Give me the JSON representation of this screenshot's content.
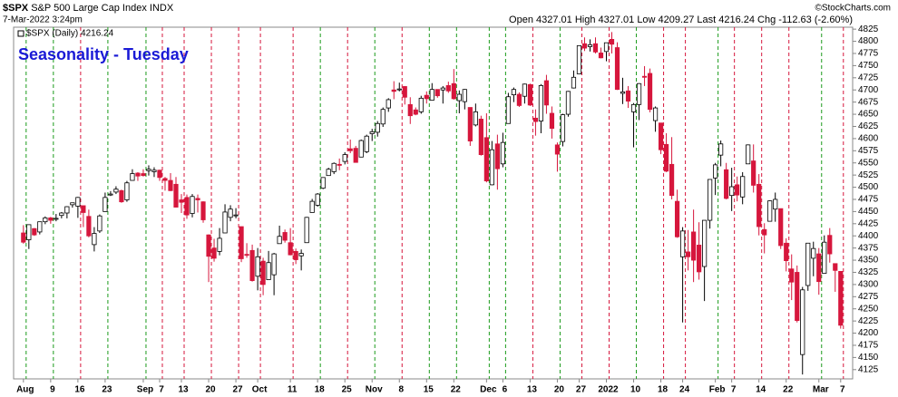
{
  "header": {
    "symbol": "$SPX",
    "name": "S&P 500 Large Cap Index",
    "exchange": "INDX",
    "date": "7-Mar-2022 3:24pm",
    "quote": "Open 4327.01 High 4327.01 Low 4209.27 Last 4216.24 Chg -112.63 (-2.60%)",
    "credit": "©StockCharts.com"
  },
  "chart_data": {
    "type": "candlestick",
    "title": "Seasonality - Tuesday",
    "legend": "$SPX (Daily) 4216.24",
    "up_color": "#ffffff",
    "down_color": "#d6163c",
    "line_up_color": "#1a9a1a",
    "line_down_color": "#d6163c",
    "ylim": [
      4106,
      4829
    ],
    "xlim": [
      -1.8,
      152.2
    ],
    "yticks": [
      4125,
      4150,
      4175,
      4200,
      4225,
      4250,
      4275,
      4300,
      4325,
      4350,
      4375,
      4400,
      4425,
      4450,
      4475,
      4500,
      4525,
      4550,
      4575,
      4600,
      4625,
      4650,
      4675,
      4700,
      4725,
      4750,
      4775,
      4800,
      4825
    ],
    "xticks": [
      {
        "value": 0,
        "label": "Aug"
      },
      {
        "value": 5,
        "label": "9"
      },
      {
        "value": 10,
        "label": "16"
      },
      {
        "value": 15,
        "label": "23"
      },
      {
        "value": 22,
        "label": "Sep"
      },
      {
        "value": 25,
        "label": "7"
      },
      {
        "value": 29,
        "label": "13"
      },
      {
        "value": 34,
        "label": "20"
      },
      {
        "value": 39,
        "label": "27"
      },
      {
        "value": 43,
        "label": "Oct"
      },
      {
        "value": 49,
        "label": "11"
      },
      {
        "value": 54,
        "label": "18"
      },
      {
        "value": 59,
        "label": "25"
      },
      {
        "value": 64,
        "label": "Nov"
      },
      {
        "value": 69,
        "label": "8"
      },
      {
        "value": 74,
        "label": "15"
      },
      {
        "value": 79,
        "label": "22"
      },
      {
        "value": 85,
        "label": "Dec"
      },
      {
        "value": 88,
        "label": "6"
      },
      {
        "value": 93,
        "label": "13"
      },
      {
        "value": 98,
        "label": "20"
      },
      {
        "value": 102,
        "label": "27"
      },
      {
        "value": 107,
        "label": "2022"
      },
      {
        "value": 112,
        "label": "10"
      },
      {
        "value": 117,
        "label": "18"
      },
      {
        "value": 121,
        "label": "24"
      },
      {
        "value": 127,
        "label": "Feb"
      },
      {
        "value": 130,
        "label": "7"
      },
      {
        "value": 135,
        "label": "14"
      },
      {
        "value": 140,
        "label": "22"
      },
      {
        "value": 146,
        "label": "Mar"
      },
      {
        "value": 150,
        "label": "7"
      }
    ],
    "ohlc": [
      [
        4406,
        4422,
        4384,
        4387
      ],
      [
        4392,
        4423,
        4373,
        4423
      ],
      [
        4415,
        4416,
        4400,
        4402
      ],
      [
        4408,
        4429,
        4403,
        4429
      ],
      [
        4429,
        4440,
        4424,
        4437
      ],
      [
        4437,
        4439,
        4425,
        4432
      ],
      [
        4435,
        4445,
        4430,
        4436
      ],
      [
        4442,
        4449,
        4436,
        4447
      ],
      [
        4447,
        4461,
        4436,
        4460
      ],
      [
        4464,
        4468,
        4458,
        4468
      ],
      [
        4461,
        4480,
        4437,
        4479
      ],
      [
        4462,
        4462,
        4418,
        4448
      ],
      [
        4440,
        4454,
        4397,
        4400
      ],
      [
        4382,
        4418,
        4368,
        4405
      ],
      [
        4410,
        4444,
        4406,
        4441
      ],
      [
        4450,
        4489,
        4450,
        4479
      ],
      [
        4484,
        4492,
        4482,
        4486
      ],
      [
        4490,
        4502,
        4486,
        4496
      ],
      [
        4493,
        4495,
        4468,
        4470
      ],
      [
        4474,
        4513,
        4470,
        4509
      ],
      [
        4514,
        4537,
        4514,
        4528
      ],
      [
        4529,
        4531,
        4513,
        4523
      ],
      [
        4528,
        4537,
        4522,
        4524
      ],
      [
        4534,
        4545,
        4524,
        4537
      ],
      [
        4532,
        4541,
        4521,
        4535
      ],
      [
        4535,
        4536,
        4513,
        4520
      ],
      [
        4518,
        4521,
        4493,
        4514
      ],
      [
        4514,
        4529,
        4492,
        4493
      ],
      [
        4506,
        4521,
        4459,
        4459
      ],
      [
        4474,
        4486,
        4447,
        4469
      ],
      [
        4479,
        4485,
        4435,
        4443
      ],
      [
        4446,
        4486,
        4438,
        4481
      ],
      [
        4477,
        4485,
        4448,
        4474
      ],
      [
        4470,
        4471,
        4427,
        4433
      ],
      [
        4402,
        4403,
        4305,
        4358
      ],
      [
        4375,
        4394,
        4347,
        4354
      ],
      [
        4368,
        4416,
        4360,
        4395
      ],
      [
        4406,
        4465,
        4406,
        4449
      ],
      [
        4438,
        4463,
        4430,
        4455
      ],
      [
        4442,
        4457,
        4436,
        4443
      ],
      [
        4419,
        4419,
        4346,
        4353
      ],
      [
        4362,
        4385,
        4355,
        4360
      ],
      [
        4370,
        4382,
        4306,
        4308
      ],
      [
        4317,
        4375,
        4288,
        4357
      ],
      [
        4348,
        4355,
        4278,
        4300
      ],
      [
        4310,
        4369,
        4310,
        4345
      ],
      [
        4320,
        4365,
        4278,
        4363
      ],
      [
        4384,
        4421,
        4384,
        4399
      ],
      [
        4407,
        4413,
        4386,
        4391
      ],
      [
        4386,
        4416,
        4360,
        4361
      ],
      [
        4368,
        4374,
        4342,
        4351
      ],
      [
        4359,
        4372,
        4329,
        4364
      ],
      [
        4386,
        4439,
        4386,
        4438
      ],
      [
        4448,
        4476,
        4448,
        4471
      ],
      [
        4463,
        4488,
        4460,
        4486
      ],
      [
        4498,
        4520,
        4496,
        4520
      ],
      [
        4524,
        4540,
        4524,
        4537
      ],
      [
        4532,
        4551,
        4527,
        4549
      ],
      [
        4547,
        4559,
        4535,
        4545
      ],
      [
        4553,
        4572,
        4547,
        4567
      ],
      [
        4579,
        4598,
        4570,
        4575
      ],
      [
        4580,
        4585,
        4551,
        4551
      ],
      [
        4562,
        4598,
        4562,
        4596
      ],
      [
        4573,
        4608,
        4570,
        4605
      ],
      [
        4610,
        4620,
        4595,
        4614
      ],
      [
        4613,
        4636,
        4604,
        4631
      ],
      [
        4630,
        4664,
        4624,
        4660
      ],
      [
        4663,
        4683,
        4655,
        4680
      ],
      [
        4700,
        4718,
        4681,
        4697
      ],
      [
        4701,
        4715,
        4697,
        4702
      ],
      [
        4707,
        4708,
        4670,
        4685
      ],
      [
        4670,
        4685,
        4630,
        4647
      ],
      [
        4659,
        4664,
        4648,
        4650
      ],
      [
        4655,
        4688,
        4651,
        4683
      ],
      [
        4689,
        4697,
        4672,
        4682
      ],
      [
        4679,
        4714,
        4679,
        4701
      ],
      [
        4701,
        4701,
        4684,
        4688
      ],
      [
        4700,
        4708,
        4672,
        4704
      ],
      [
        4709,
        4717,
        4694,
        4698
      ],
      [
        4713,
        4743,
        4680,
        4682
      ],
      [
        4678,
        4699,
        4652,
        4691
      ],
      [
        4676,
        4702,
        4660,
        4701
      ],
      [
        4664,
        4664,
        4585,
        4595
      ],
      [
        4628,
        4672,
        4625,
        4655
      ],
      [
        4640,
        4647,
        4565,
        4567
      ],
      [
        4602,
        4652,
        4510,
        4513
      ],
      [
        4505,
        4595,
        4504,
        4577
      ],
      [
        4589,
        4608,
        4495,
        4538
      ],
      [
        4548,
        4612,
        4541,
        4592
      ],
      [
        4631,
        4694,
        4631,
        4686
      ],
      [
        4690,
        4705,
        4675,
        4701
      ],
      [
        4691,
        4695,
        4665,
        4668
      ],
      [
        4687,
        4713,
        4672,
        4712
      ],
      [
        4711,
        4713,
        4667,
        4669
      ],
      [
        4642,
        4660,
        4606,
        4635
      ],
      [
        4636,
        4712,
        4611,
        4709
      ],
      [
        4719,
        4731,
        4651,
        4669
      ],
      [
        4652,
        4666,
        4600,
        4621
      ],
      [
        4587,
        4592,
        4532,
        4568
      ],
      [
        4594,
        4651,
        4584,
        4649
      ],
      [
        4650,
        4698,
        4645,
        4697
      ],
      [
        4704,
        4740,
        4703,
        4726
      ],
      [
        4733,
        4791,
        4733,
        4791
      ],
      [
        4795,
        4808,
        4780,
        4786
      ],
      [
        4789,
        4804,
        4779,
        4793
      ],
      [
        4795,
        4808,
        4775,
        4778
      ],
      [
        4776,
        4787,
        4765,
        4766
      ],
      [
        4779,
        4797,
        4759,
        4797
      ],
      [
        4804,
        4819,
        4775,
        4794
      ],
      [
        4787,
        4798,
        4700,
        4701
      ],
      [
        4693,
        4725,
        4671,
        4696
      ],
      [
        4698,
        4708,
        4663,
        4677
      ],
      [
        4655,
        4673,
        4582,
        4670
      ],
      [
        4670,
        4714,
        4638,
        4713
      ],
      [
        4728,
        4749,
        4708,
        4726
      ],
      [
        4734,
        4744,
        4654,
        4660
      ],
      [
        4637,
        4666,
        4614,
        4663
      ],
      [
        4632,
        4632,
        4568,
        4577
      ],
      [
        4588,
        4611,
        4531,
        4533
      ],
      [
        4547,
        4603,
        4475,
        4483
      ],
      [
        4471,
        4495,
        4396,
        4398
      ],
      [
        4357,
        4418,
        4222,
        4410
      ],
      [
        4367,
        4412,
        4329,
        4357
      ],
      [
        4408,
        4454,
        4305,
        4350
      ],
      [
        4381,
        4428,
        4310,
        4326
      ],
      [
        4337,
        4432,
        4266,
        4432
      ],
      [
        4432,
        4516,
        4415,
        4516
      ],
      [
        4519,
        4550,
        4484,
        4546
      ],
      [
        4566,
        4596,
        4543,
        4589
      ],
      [
        4536,
        4550,
        4475,
        4477
      ],
      [
        4483,
        4540,
        4451,
        4501
      ],
      [
        4505,
        4522,
        4471,
        4484
      ],
      [
        4480,
        4531,
        4465,
        4522
      ],
      [
        4548,
        4588,
        4548,
        4587
      ],
      [
        4554,
        4588,
        4489,
        4504
      ],
      [
        4506,
        4527,
        4401,
        4419
      ],
      [
        4413,
        4426,
        4364,
        4402
      ],
      [
        4430,
        4473,
        4430,
        4472
      ],
      [
        4455,
        4489,
        4429,
        4475
      ],
      [
        4456,
        4456,
        4373,
        4380
      ],
      [
        4385,
        4395,
        4327,
        4349
      ],
      [
        4332,
        4362,
        4268,
        4305
      ],
      [
        4325,
        4339,
        4222,
        4226
      ],
      [
        4156,
        4295,
        4115,
        4289
      ],
      [
        4298,
        4385,
        4287,
        4385
      ],
      [
        4354,
        4388,
        4317,
        4374
      ],
      [
        4363,
        4375,
        4279,
        4306
      ],
      [
        4323,
        4401,
        4323,
        4387
      ],
      [
        4401,
        4416,
        4345,
        4363
      ],
      [
        4343,
        4343,
        4285,
        4329
      ],
      [
        4327.01,
        4327.01,
        4209.27,
        4216.24
      ]
    ]
  }
}
